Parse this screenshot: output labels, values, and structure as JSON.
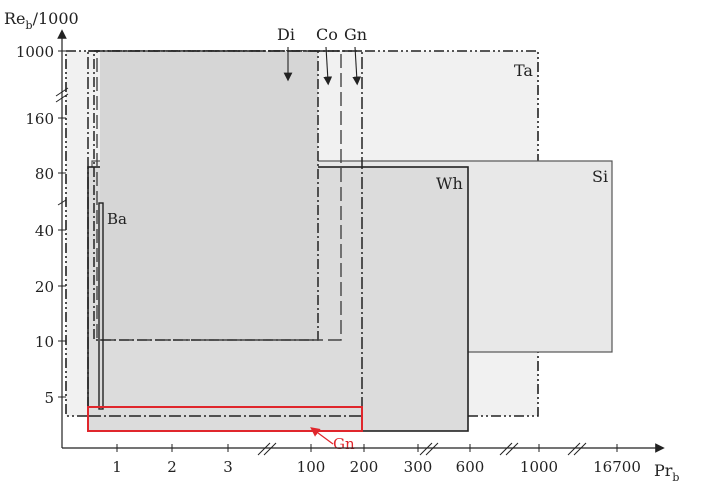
{
  "axes": {
    "y_label_main": "Re",
    "y_label_sub": "b",
    "y_label_suffix": "/1000",
    "x_label_main": "Pr",
    "x_label_sub": "b",
    "y_ticks": [
      "1000",
      "160",
      "80",
      "40",
      "20",
      "10",
      "5"
    ],
    "x_ticks": [
      "1",
      "2",
      "3",
      "100",
      "200",
      "300",
      "600",
      "1000",
      "16700"
    ]
  },
  "regions": {
    "ta": {
      "label": "Ta",
      "x_range": [
        "< 1",
        "1000"
      ],
      "y_range": [
        "< 5",
        "1000"
      ],
      "style": "dash-dot-dot",
      "fill": "#f1f1f1"
    },
    "si": {
      "label": "Si",
      "x_range": [
        "< 1",
        "16700"
      ],
      "y_range": [
        "< 10",
        "> 80"
      ],
      "style": "solid",
      "fill": "#e8e8e8"
    },
    "wh": {
      "label": "Wh",
      "x_range": [
        "< 1",
        "600"
      ],
      "y_range": [
        "< 5",
        "80"
      ],
      "style": "solid",
      "fill": "#dcdcdc"
    },
    "di": {
      "label": "Di",
      "x_range": [
        "< 1",
        "~ 100"
      ],
      "y_range": [
        "10",
        "1000"
      ],
      "style": "dash-dot",
      "fill": "#d6d6d6"
    },
    "co": {
      "label": "Co",
      "x_range": [
        "< 1",
        "~ 160"
      ],
      "y_range": [
        "10",
        "1000"
      ],
      "style": "dashed",
      "fill": "none"
    },
    "gn": {
      "label": "Gn",
      "x_range": [
        "< 1",
        "200"
      ],
      "y_range": [
        "< 5",
        "1000"
      ],
      "style": "dash-dot",
      "fill": "none"
    },
    "ba": {
      "label": "Ba",
      "x_range": [
        "~ 1",
        "~ 1"
      ],
      "y_range": [
        "< 5",
        "~ 50"
      ],
      "style": "solid",
      "fill": "none"
    },
    "gn_low": {
      "label": "Gn",
      "x_range": [
        "< 1",
        "200"
      ],
      "y_range": [
        "< 5",
        "< 5"
      ],
      "style": "solid",
      "color": "#e0262c"
    }
  },
  "colors": {
    "axis": "#222222",
    "highlight": "#e0262c"
  }
}
